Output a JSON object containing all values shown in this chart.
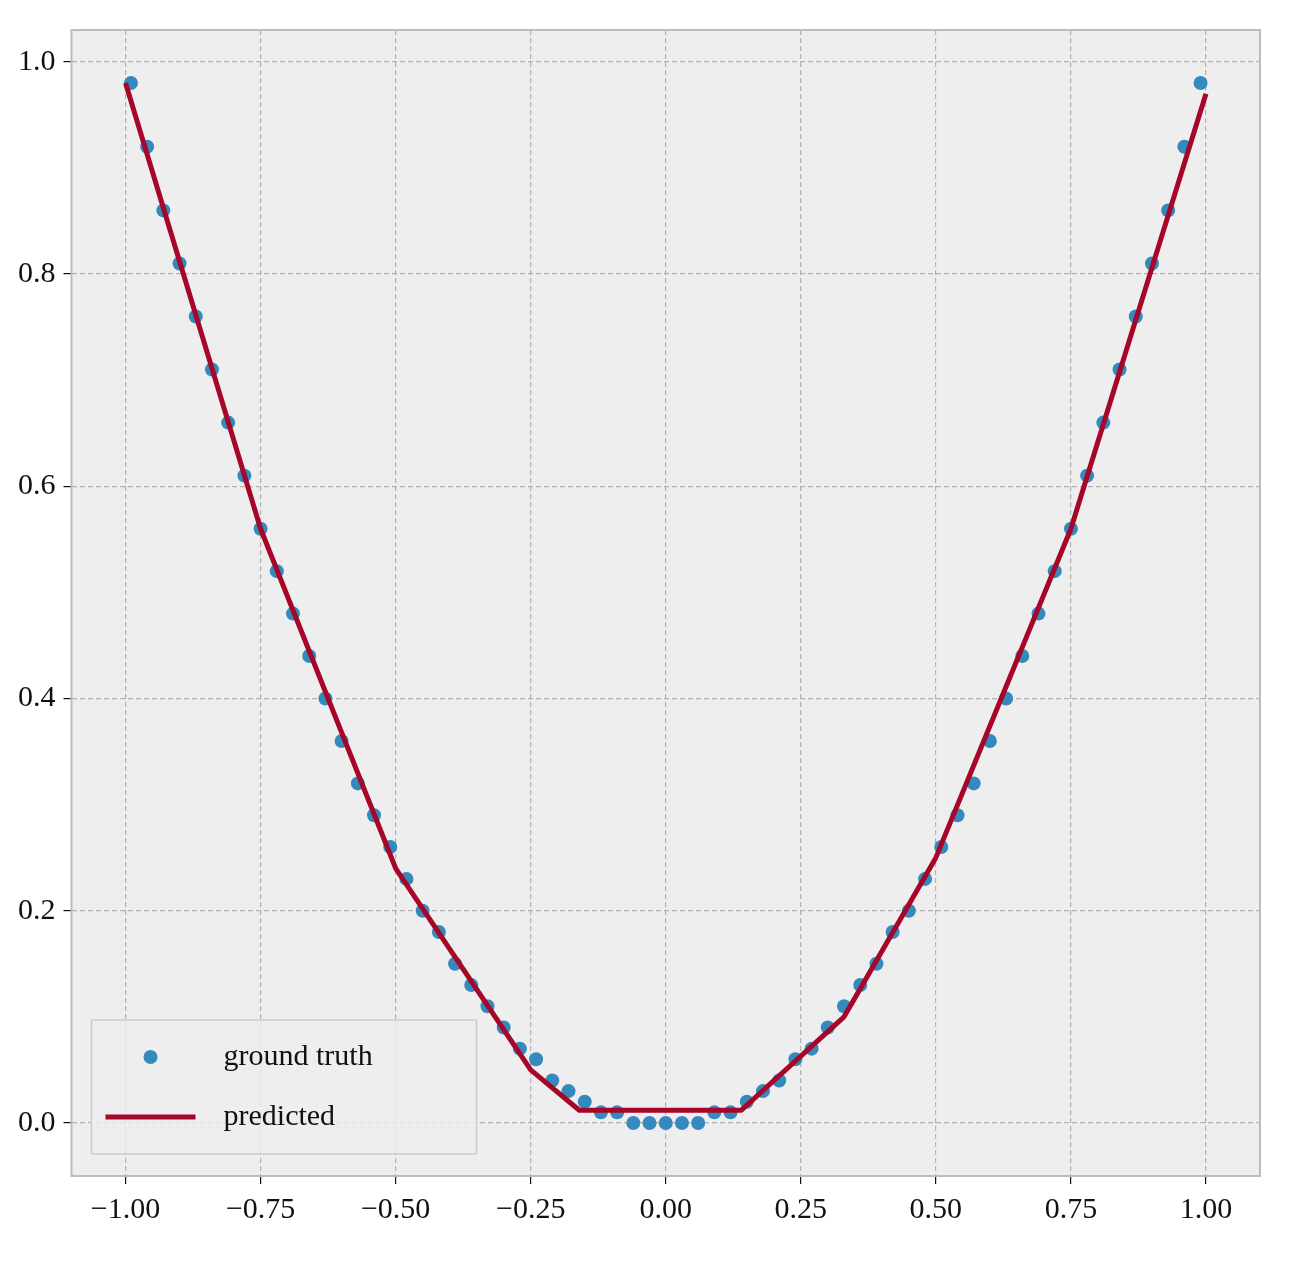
{
  "chart_data": {
    "type": "scatter",
    "series": [
      {
        "name": "ground truth",
        "marker": "circle",
        "color": "#348abd",
        "x": [
          -0.99,
          -0.96,
          -0.93,
          -0.9,
          -0.87,
          -0.84,
          -0.81,
          -0.78,
          -0.75,
          -0.72,
          -0.69,
          -0.66,
          -0.63,
          -0.6,
          -0.57,
          -0.54,
          -0.51,
          -0.48,
          -0.45,
          -0.42,
          -0.39,
          -0.36,
          -0.33,
          -0.3,
          -0.27,
          -0.24,
          -0.21,
          -0.18,
          -0.15,
          -0.12,
          -0.09,
          -0.06,
          -0.03,
          0,
          0.03,
          0.06,
          0.09,
          0.12,
          0.15,
          0.18,
          0.21,
          0.24,
          0.27,
          0.3,
          0.33,
          0.36,
          0.39,
          0.42,
          0.45,
          0.48,
          0.51,
          0.54,
          0.57,
          0.6,
          0.63,
          0.66,
          0.69,
          0.72,
          0.75,
          0.78,
          0.81,
          0.84,
          0.87,
          0.9,
          0.93,
          0.96,
          0.99
        ],
        "values": [
          0.98,
          0.92,
          0.86,
          0.81,
          0.76,
          0.71,
          0.66,
          0.61,
          0.56,
          0.52,
          0.48,
          0.44,
          0.4,
          0.36,
          0.32,
          0.29,
          0.26,
          0.23,
          0.2,
          0.18,
          0.15,
          0.13,
          0.11,
          0.09,
          0.07,
          0.06,
          0.04,
          0.03,
          0.02,
          0.01,
          0.01,
          0,
          0,
          0,
          0,
          0,
          0.01,
          0.01,
          0.02,
          0.03,
          0.04,
          0.06,
          0.07,
          0.09,
          0.11,
          0.13,
          0.15,
          0.18,
          0.2,
          0.23,
          0.26,
          0.29,
          0.32,
          0.36,
          0.4,
          0.44,
          0.48,
          0.52,
          0.56,
          0.61,
          0.66,
          0.71,
          0.76,
          0.81,
          0.86,
          0.92,
          0.98
        ]
      },
      {
        "name": "predicted",
        "type": "line",
        "marker": "none",
        "color": "#a60628",
        "x": [
          -1,
          -0.75,
          -0.5,
          -0.25,
          -0.16,
          0.14,
          0.33,
          0.5,
          0.75,
          1
        ],
        "values": [
          0.98,
          0.56,
          0.24,
          0.05,
          0.012,
          0.012,
          0.1,
          0.25,
          0.56,
          0.97
        ]
      }
    ],
    "xlim": [
      -1.1,
      1.1
    ],
    "xticks": [
      {
        "value": -1,
        "label": "−1.00"
      },
      {
        "value": -0.75,
        "label": "−0.75"
      },
      {
        "value": -0.5,
        "label": "−0.50"
      },
      {
        "value": -0.25,
        "label": "−0.25"
      },
      {
        "value": 0,
        "label": "0.00"
      },
      {
        "value": 0.25,
        "label": "0.25"
      },
      {
        "value": 0.5,
        "label": "0.50"
      },
      {
        "value": 0.75,
        "label": "0.75"
      },
      {
        "value": 1,
        "label": "1.00"
      }
    ],
    "ylim": [
      -0.05,
      1.03
    ],
    "yticks": [
      {
        "value": 0,
        "label": "0.0"
      },
      {
        "value": 0.2,
        "label": "0.2"
      },
      {
        "value": 0.4,
        "label": "0.4"
      },
      {
        "value": 0.6,
        "label": "0.6"
      },
      {
        "value": 0.8,
        "label": "0.8"
      },
      {
        "value": 1,
        "label": "1.0"
      }
    ],
    "grid": true,
    "legend": "bottom left"
  }
}
